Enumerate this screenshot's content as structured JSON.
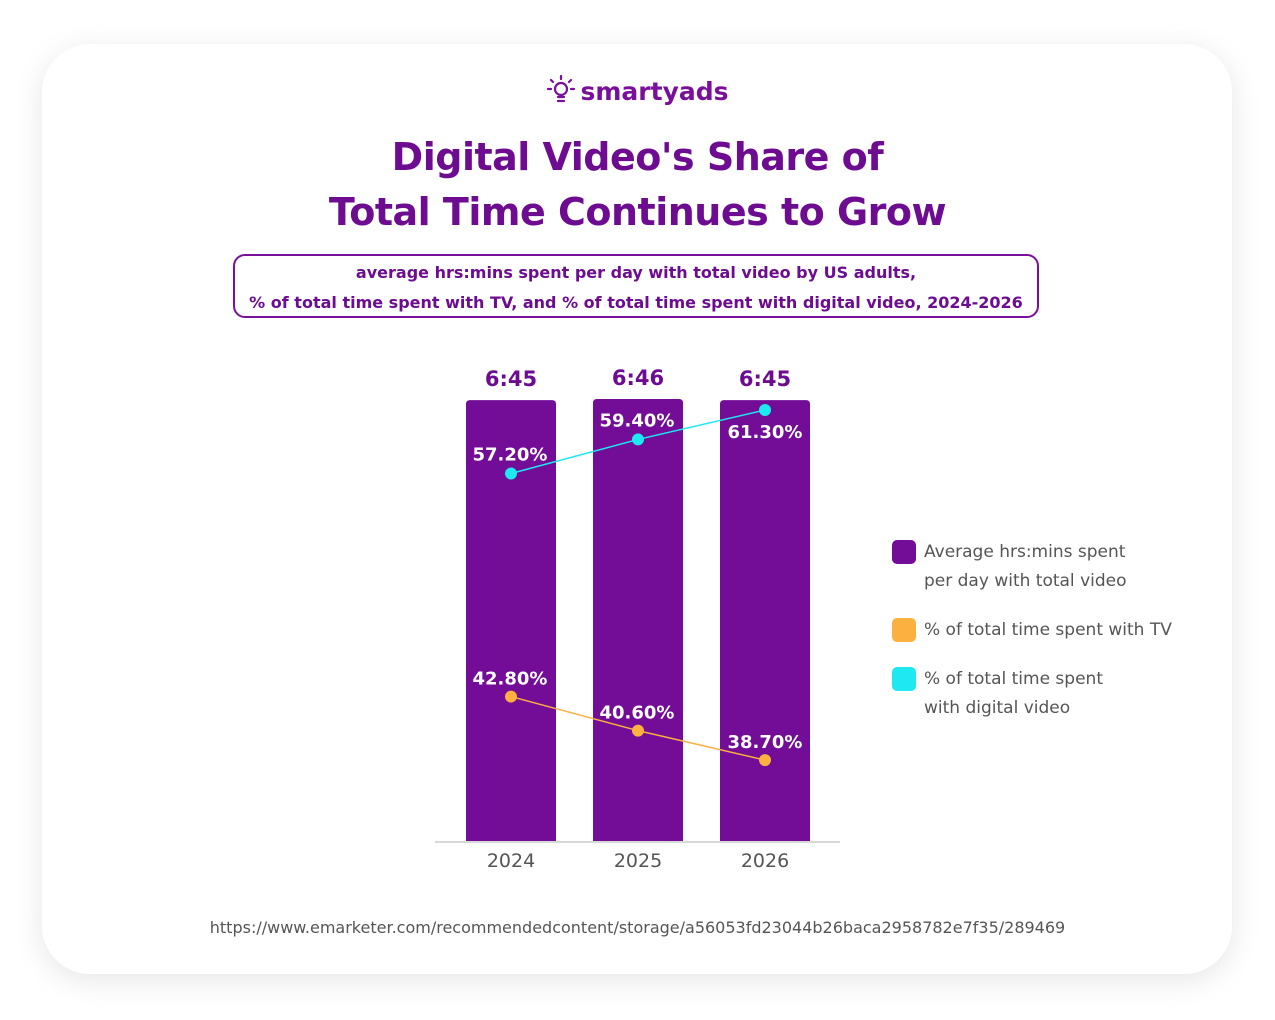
{
  "brand": {
    "name": "smartyads",
    "logo_icon": "lightbulb-icon"
  },
  "title_lines": [
    "Digital Video's Share of",
    "Total Time Continues to Grow"
  ],
  "subtitle_lines": [
    "average hrs:mins spent per day with total video by US adults,",
    "% of total time spent with TV, and % of total time spent with digital video, 2024-2026"
  ],
  "colors": {
    "bar": "#730c96",
    "tv": "#fbb040",
    "digital": "#1ee8f0",
    "title": "#6d0b91"
  },
  "chart_data": {
    "type": "bar",
    "categories": [
      "2024",
      "2025",
      "2026"
    ],
    "series": [
      {
        "name": "Average hrs:mins spent per day with total video",
        "type": "bar",
        "values_minutes": [
          405,
          406,
          405
        ],
        "labels": [
          "6:45",
          "6:46",
          "6:45"
        ]
      },
      {
        "name": "% of total time spent with TV",
        "type": "line",
        "values": [
          42.8,
          40.6,
          38.7
        ],
        "labels": [
          "42.80%",
          "40.60%",
          "38.70%"
        ]
      },
      {
        "name": "% of total time spent with digital video",
        "type": "line",
        "values": [
          57.2,
          59.4,
          61.3
        ],
        "labels": [
          "57.20%",
          "59.40%",
          "61.30%"
        ]
      }
    ],
    "legend": {
      "position": "right",
      "entries": [
        [
          "Average hrs:mins spent",
          "per day with total video"
        ],
        [
          "% of total time spent with TV"
        ],
        [
          "% of total time spent",
          "with digital video"
        ]
      ]
    },
    "grid": false
  },
  "source": "https://www.emarketer.com/recommendedcontent/storage/a56053fd23044b26baca2958782e7f35/289469"
}
